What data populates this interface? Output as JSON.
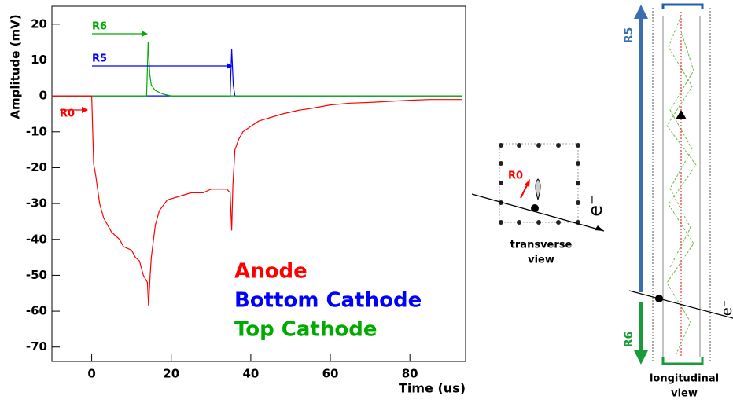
{
  "chart_data": {
    "type": "line",
    "x_label": "Time (us)",
    "y_label": "Amplitude (mV)",
    "xlim": [
      -10,
      94
    ],
    "xticks": [
      0,
      20,
      40,
      60,
      80
    ],
    "ylim": [
      -74,
      25
    ],
    "yticks": [
      20,
      10,
      0,
      -10,
      -20,
      -30,
      -40,
      -50,
      -60,
      -70
    ],
    "grid": false,
    "series": [
      {
        "name": "Anode",
        "color": "#ff0000",
        "x": [
          -10,
          -1,
          0,
          0.5,
          1,
          2,
          3,
          5,
          7,
          8,
          10,
          11,
          12,
          13,
          14,
          14.3,
          14.7,
          15,
          16,
          17,
          19,
          22,
          25,
          28,
          30,
          32,
          34,
          34.8,
          35.2,
          35.5,
          36,
          37,
          38,
          40,
          42,
          45,
          48,
          52,
          55,
          60,
          65,
          70,
          75,
          80,
          85,
          90,
          93
        ],
        "values": [
          0,
          0,
          0,
          -19,
          -22,
          -30,
          -34,
          -38,
          -40,
          -42,
          -43,
          -45,
          -46,
          -50,
          -52,
          -58.5,
          -50,
          -45,
          -36,
          -32,
          -29,
          -28,
          -27,
          -27,
          -26,
          -26,
          -26,
          -27,
          -37.5,
          -25,
          -15,
          -12,
          -10,
          -8.5,
          -7,
          -6,
          -5,
          -4,
          -3.5,
          -2.5,
          -2,
          -1.8,
          -1.5,
          -1.2,
          -1,
          -1,
          -1
        ]
      },
      {
        "name": "Bottom Cathode",
        "color": "#0000ff",
        "x": [
          -10,
          0,
          10,
          20,
          30,
          34.8,
          35.2,
          35.6,
          36,
          40,
          50,
          60,
          70,
          80,
          93
        ],
        "values": [
          0,
          0,
          0,
          0,
          0,
          0,
          13,
          3,
          0,
          0,
          0,
          0,
          0,
          0,
          0
        ]
      },
      {
        "name": "Top Cathode",
        "color": "#00aa00",
        "x": [
          -10,
          0,
          10,
          13.8,
          14.2,
          14.6,
          15,
          16,
          18,
          20,
          30,
          40,
          50,
          60,
          70,
          80,
          93
        ],
        "values": [
          0,
          0,
          0,
          0,
          15,
          6,
          3,
          1.5,
          0.5,
          0,
          0,
          0,
          0,
          0,
          0,
          0,
          0
        ]
      }
    ],
    "annotations": [
      {
        "text": "R6",
        "color": "#00aa00"
      },
      {
        "text": "R5",
        "color": "#0000ff"
      },
      {
        "text": "R0",
        "color": "#ff0000"
      }
    ]
  },
  "diagram": {
    "transverse": {
      "label": "R0",
      "particle": "e⁻",
      "caption": [
        "transverse",
        "view"
      ]
    },
    "longitudinal": {
      "top_label": "R5",
      "bottom_label": "R6",
      "particle": "e⁻",
      "caption": [
        "longitudinal",
        "view"
      ]
    }
  }
}
